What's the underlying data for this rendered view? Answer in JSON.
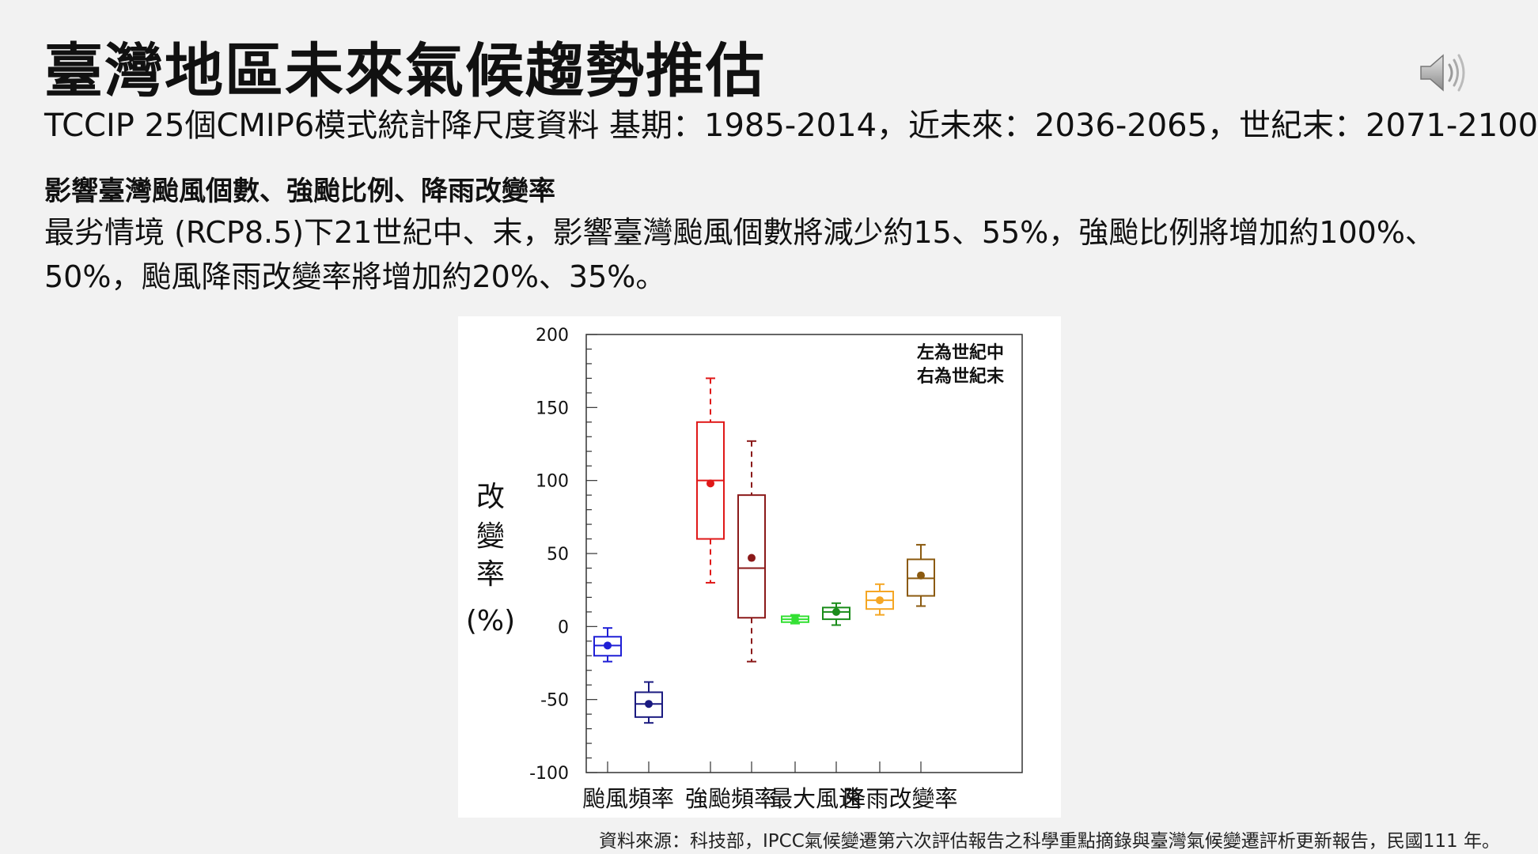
{
  "header": {
    "title": "臺灣地區未來氣候趨勢推估",
    "subtitle": "TCCIP 25個CMIP6模式統計降尺度資料 基期：1985-2014，近未來：2036-2065，世紀末：2071-2100"
  },
  "section": {
    "heading": "影響臺灣颱風個數、強颱比例、降雨改變率",
    "body": "最劣情境 (RCP8.5)下21世紀中、末，影響臺灣颱風個數將減少約15、55%，強颱比例將增加約100%、50%，颱風降雨改變率將增加約20%、35%。"
  },
  "icons": {
    "speaker": "speaker-icon"
  },
  "footer": {
    "source": "資料來源：科技部，IPCC氣候變遷第六次評估報告之科學重點摘錄與臺灣氣候變遷評析更新報告，民國111 年。"
  },
  "chart_data": {
    "type": "boxplot",
    "ylabel_chars": [
      "改",
      "變",
      "率",
      "(%)"
    ],
    "ylim": [
      -100,
      200
    ],
    "yticks": [
      200,
      150,
      100,
      50,
      0,
      -50,
      -100
    ],
    "legend_lines": [
      "左為世紀中",
      "右為世紀末"
    ],
    "legend_position": "top-right",
    "grid": false,
    "categories": [
      "颱風頻率",
      "強颱頻率",
      "最大風速",
      "降雨改變率"
    ],
    "boxes": [
      {
        "category": "颱風頻率",
        "period": "世紀中",
        "color": "#1f1fd6",
        "whisker_low": -24,
        "q1": -20,
        "median": -13,
        "q3": -7,
        "whisker_high": -1,
        "mean": -13,
        "whisker_style": "solid"
      },
      {
        "category": "颱風頻率",
        "period": "世紀末",
        "color": "#1a1a80",
        "whisker_low": -66,
        "q1": -62,
        "median": -53,
        "q3": -45,
        "whisker_high": -38,
        "mean": -53,
        "whisker_style": "solid"
      },
      {
        "category": "強颱頻率",
        "period": "世紀中",
        "color": "#e01818",
        "whisker_low": 30,
        "q1": 60,
        "median": 100,
        "q3": 140,
        "whisker_high": 170,
        "mean": 98,
        "whisker_style": "dashed"
      },
      {
        "category": "強颱頻率",
        "period": "世紀末",
        "color": "#8b1a1a",
        "whisker_low": -24,
        "q1": 6,
        "median": 40,
        "q3": 90,
        "whisker_high": 127,
        "mean": 47,
        "whisker_style": "dashed"
      },
      {
        "category": "最大風速",
        "period": "世紀中",
        "color": "#33e033",
        "whisker_low": 2,
        "q1": 3,
        "median": 5,
        "q3": 7,
        "whisker_high": 8,
        "mean": 5,
        "whisker_style": "solid"
      },
      {
        "category": "最大風速",
        "period": "世紀末",
        "color": "#1a8c1a",
        "whisker_low": 1,
        "q1": 5,
        "median": 10,
        "q3": 13,
        "whisker_high": 16,
        "mean": 10,
        "whisker_style": "solid"
      },
      {
        "category": "降雨改變率",
        "period": "世紀中",
        "color": "#f5a623",
        "whisker_low": 8,
        "q1": 12,
        "median": 18,
        "q3": 24,
        "whisker_high": 29,
        "mean": 18,
        "whisker_style": "solid"
      },
      {
        "category": "降雨改變率",
        "period": "世紀末",
        "color": "#8b5a10",
        "whisker_low": 14,
        "q1": 21,
        "median": 33,
        "q3": 46,
        "whisker_high": 56,
        "mean": 35,
        "whisker_style": "solid"
      }
    ]
  }
}
